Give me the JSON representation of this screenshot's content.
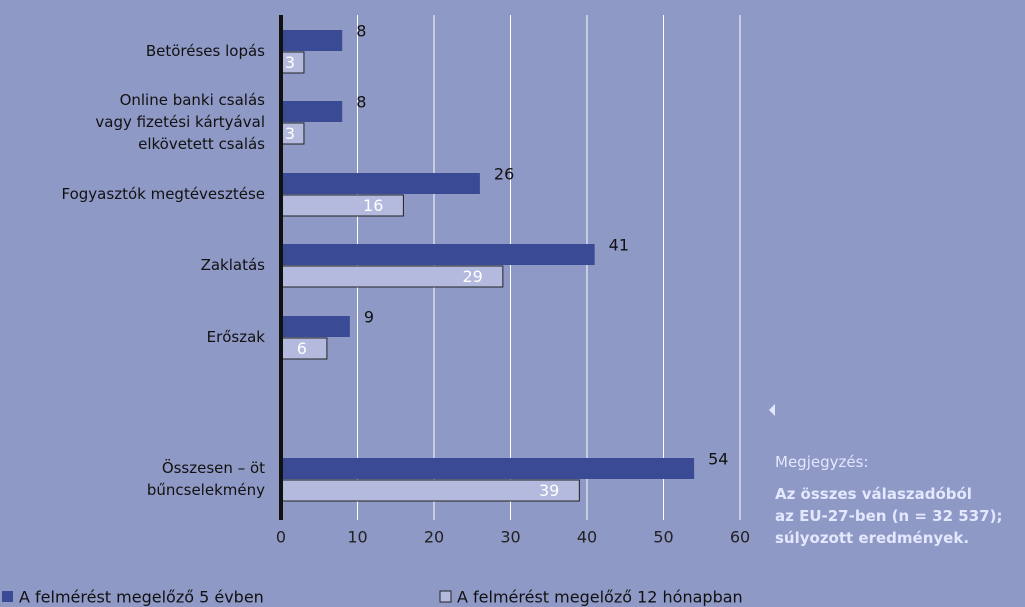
{
  "chart_data": {
    "type": "hbar",
    "categories": [
      "Betöréses lopás",
      "Online banki csalás\nvagy fizetési kártyával\nelkövetett csalás",
      "Fogyasztók megtévesztése",
      "Zaklatás",
      "Erőszak",
      "Összesen – öt\nbűncselekmény"
    ],
    "series": [
      {
        "name": "A felmérést megelőző 5 évben",
        "color": "#3b4a94",
        "values": [
          8,
          8,
          26,
          41,
          9,
          54
        ]
      },
      {
        "name": "A felmérést megelőző 12 hónapban",
        "color": "#b4b9de",
        "values": [
          3,
          3,
          16,
          29,
          6,
          39
        ]
      }
    ],
    "xlim": [
      0,
      60
    ],
    "xticks": [
      0,
      10,
      20,
      30,
      40,
      50,
      60
    ],
    "grid": true,
    "note": {
      "heading": "Megjegyzés:",
      "lines": [
        "Az összes válaszadóból",
        "az EU-27-ben (n = 32 537);",
        "súlyozott eredmények."
      ]
    }
  }
}
